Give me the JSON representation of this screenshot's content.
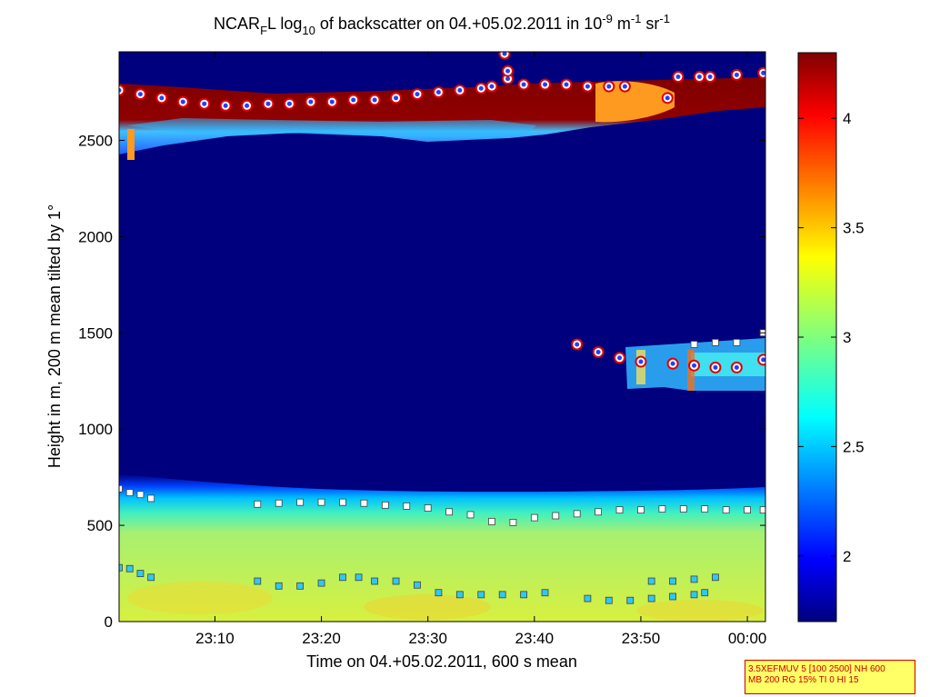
{
  "chart_data": {
    "type": "heatmap",
    "title_parts": {
      "prefix": "NCAR",
      "prefix_sub": "F",
      "mid": "L log",
      "mid_sub": "10",
      "text": " of backscatter on 04.+05.02.2011 in 10",
      "exp1": "-9",
      "unit1": " m",
      "exp2": "-1",
      "unit2": " sr",
      "exp3": "-1"
    },
    "xlabel": "Time on 04.+05.02.2011, 600 s mean",
    "ylabel": "Height in m, 200 m mean tilted by 1°",
    "x_ticks": [
      "23:10",
      "23:20",
      "23:30",
      "23:40",
      "23:50",
      "00:00"
    ],
    "x_tick_minutes": [
      10,
      20,
      30,
      40,
      50,
      60
    ],
    "x_range_minutes": [
      1,
      61.7
    ],
    "y_ticks": [
      "0",
      "500",
      "1000",
      "1500",
      "2000",
      "2500"
    ],
    "y_tick_values": [
      0,
      500,
      1000,
      1500,
      2000,
      2500
    ],
    "ylim": [
      0,
      2960
    ],
    "colorbar": {
      "range": [
        1.7,
        4.3
      ],
      "ticks": [
        "2",
        "2.5",
        "3",
        "3.5",
        "4"
      ],
      "tick_values": [
        2,
        2.5,
        3,
        3.5,
        4
      ],
      "colormap": "jet"
    },
    "colors": {
      "background": "#00007f",
      "boundary_layer": "#c8f050",
      "cloud_top_band": "#7f0000"
    },
    "series": [
      {
        "marker": "round",
        "color": "#e00000",
        "points": [
          [
            1,
            2760
          ],
          [
            3,
            2740
          ],
          [
            5,
            2720
          ],
          [
            7,
            2700
          ],
          [
            9,
            2690
          ],
          [
            11,
            2680
          ],
          [
            13,
            2680
          ],
          [
            15,
            2690
          ],
          [
            17,
            2690
          ],
          [
            19,
            2700
          ],
          [
            21,
            2700
          ],
          [
            23,
            2710
          ],
          [
            25,
            2710
          ],
          [
            27,
            2720
          ],
          [
            29,
            2740
          ],
          [
            31,
            2750
          ],
          [
            33,
            2760
          ],
          [
            35,
            2770
          ],
          [
            36,
            2780
          ],
          [
            37.5,
            2820
          ],
          [
            39,
            2790
          ],
          [
            41,
            2790
          ],
          [
            43,
            2790
          ],
          [
            45,
            2780
          ],
          [
            47,
            2780
          ],
          [
            48.5,
            2780
          ],
          [
            52.5,
            2720
          ],
          [
            53.5,
            2830
          ],
          [
            55.5,
            2830
          ],
          [
            56.5,
            2830
          ],
          [
            59,
            2840
          ],
          [
            61.5,
            2850
          ],
          [
            37.2,
            2950
          ],
          [
            37.5,
            2860
          ],
          [
            44,
            1440
          ],
          [
            46,
            1400
          ],
          [
            48,
            1370
          ],
          [
            50,
            1350
          ],
          [
            53,
            1340
          ],
          [
            55,
            1330
          ],
          [
            57,
            1320
          ],
          [
            59,
            1320
          ],
          [
            61.5,
            1360
          ]
        ]
      },
      {
        "marker": "square",
        "color": "#ffffff",
        "points": [
          [
            1,
            690
          ],
          [
            2,
            670
          ],
          [
            3,
            660
          ],
          [
            4,
            640
          ],
          [
            14,
            610
          ],
          [
            16,
            615
          ],
          [
            18,
            620
          ],
          [
            20,
            620
          ],
          [
            22,
            620
          ],
          [
            24,
            615
          ],
          [
            26,
            605
          ],
          [
            28,
            600
          ],
          [
            30,
            590
          ],
          [
            32,
            570
          ],
          [
            34,
            555
          ],
          [
            36,
            520
          ],
          [
            38,
            515
          ],
          [
            40,
            540
          ],
          [
            42,
            550
          ],
          [
            44,
            560
          ],
          [
            46,
            570
          ],
          [
            48,
            580
          ],
          [
            50,
            580
          ],
          [
            52,
            585
          ],
          [
            54,
            585
          ],
          [
            56,
            585
          ],
          [
            58,
            580
          ],
          [
            60,
            580
          ],
          [
            61.5,
            580
          ],
          [
            55,
            1440
          ],
          [
            57,
            1450
          ],
          [
            59,
            1450
          ],
          [
            61.5,
            1500
          ]
        ]
      },
      {
        "marker": "square",
        "color": "#30c8f0",
        "points": [
          [
            1,
            280
          ],
          [
            2,
            275
          ],
          [
            3,
            250
          ],
          [
            4,
            230
          ],
          [
            14,
            210
          ],
          [
            16,
            185
          ],
          [
            18,
            185
          ],
          [
            20,
            200
          ],
          [
            22,
            230
          ],
          [
            23.5,
            230
          ],
          [
            25,
            210
          ],
          [
            27,
            210
          ],
          [
            29,
            190
          ],
          [
            31,
            150
          ],
          [
            33,
            140
          ],
          [
            35,
            140
          ],
          [
            37,
            140
          ],
          [
            39,
            140
          ],
          [
            41,
            150
          ],
          [
            45,
            120
          ],
          [
            47,
            110
          ],
          [
            49,
            110
          ],
          [
            51,
            120
          ],
          [
            53,
            130
          ],
          [
            55,
            140
          ],
          [
            56,
            150
          ],
          [
            51,
            210
          ],
          [
            53,
            210
          ],
          [
            55,
            220
          ],
          [
            57,
            230
          ]
        ]
      }
    ],
    "info_box": [
      "3.5XEFMUV 5 [100 2500] NH 600",
      "MB 200 RG 15% TI 0 HI 15"
    ]
  }
}
